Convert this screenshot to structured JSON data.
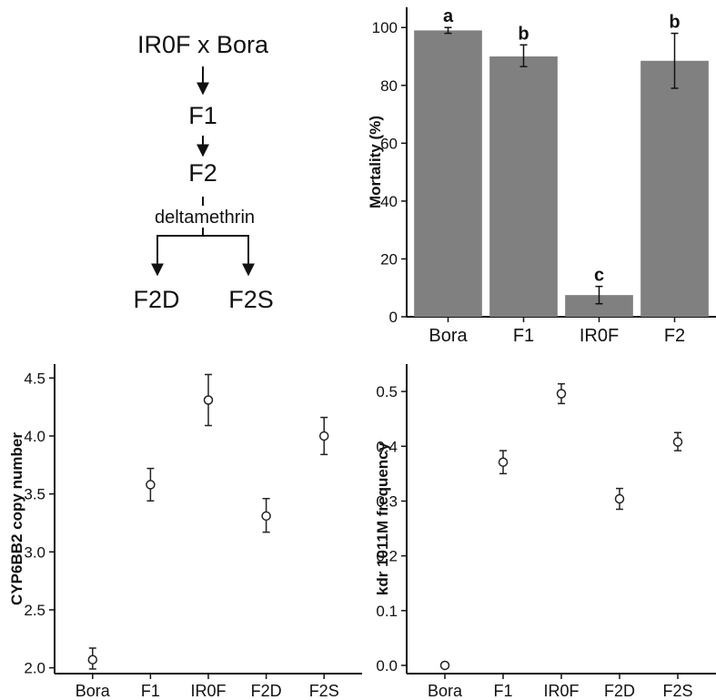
{
  "cross": {
    "parents": "IR0F x Bora",
    "f1": "F1",
    "f2": "F2",
    "selection": "deltamethrin",
    "dead": "F2D",
    "survivors": "F2S"
  },
  "chart_data": [
    {
      "id": "mortality",
      "type": "bar",
      "categories": [
        "Bora",
        "F1",
        "IR0F",
        "F2"
      ],
      "values": [
        99,
        90,
        7.5,
        88.5
      ],
      "error_low": [
        98,
        86.5,
        4.5,
        79
      ],
      "error_high": [
        100,
        94,
        10.5,
        98
      ],
      "letters": [
        "a",
        "b",
        "c",
        "b"
      ],
      "xlabel": "",
      "ylabel": "Mortality  (%)",
      "ylim": [
        0,
        107
      ],
      "yticks": [
        0,
        20,
        40,
        60,
        80,
        100
      ],
      "ytick_labels": [
        "0",
        "20",
        "40",
        "60",
        "80",
        "100"
      ],
      "bar_color": "#808080",
      "grid": false
    },
    {
      "id": "cyp6bb2",
      "type": "scatter",
      "categories": [
        "Bora",
        "F1",
        "IR0F",
        "F2D",
        "F2S"
      ],
      "values": [
        2.07,
        3.58,
        4.31,
        3.31,
        4.0
      ],
      "error_low": [
        1.99,
        3.44,
        4.09,
        3.17,
        3.84
      ],
      "error_high": [
        2.17,
        3.72,
        4.53,
        3.46,
        4.16
      ],
      "xlabel": "",
      "ylabel": "CYP6BB2 copy number",
      "ylim": [
        1.95,
        4.62
      ],
      "yticks": [
        2.0,
        2.5,
        3.0,
        3.5,
        4.0,
        4.5
      ],
      "ytick_labels": [
        "2.0",
        "2.5",
        "3.0",
        "3.5",
        "4.0",
        "4.5"
      ],
      "grid": false
    },
    {
      "id": "kdr",
      "type": "scatter",
      "categories": [
        "Bora",
        "F1",
        "IR0F",
        "F2D",
        "F2S"
      ],
      "values": [
        0.0,
        0.371,
        0.496,
        0.304,
        0.408
      ],
      "error_low": [
        0.0,
        0.35,
        0.478,
        0.285,
        0.392
      ],
      "error_high": [
        0.0,
        0.392,
        0.514,
        0.323,
        0.425
      ],
      "xlabel": "",
      "ylabel": "kdr  1011M frequency",
      "ylim": [
        -0.015,
        0.55
      ],
      "yticks": [
        0.0,
        0.1,
        0.2,
        0.3,
        0.4,
        0.5
      ],
      "ytick_labels": [
        "0.0",
        "0.1",
        "0.2",
        "0.3",
        "0.4",
        "0.5"
      ],
      "grid": false
    }
  ]
}
